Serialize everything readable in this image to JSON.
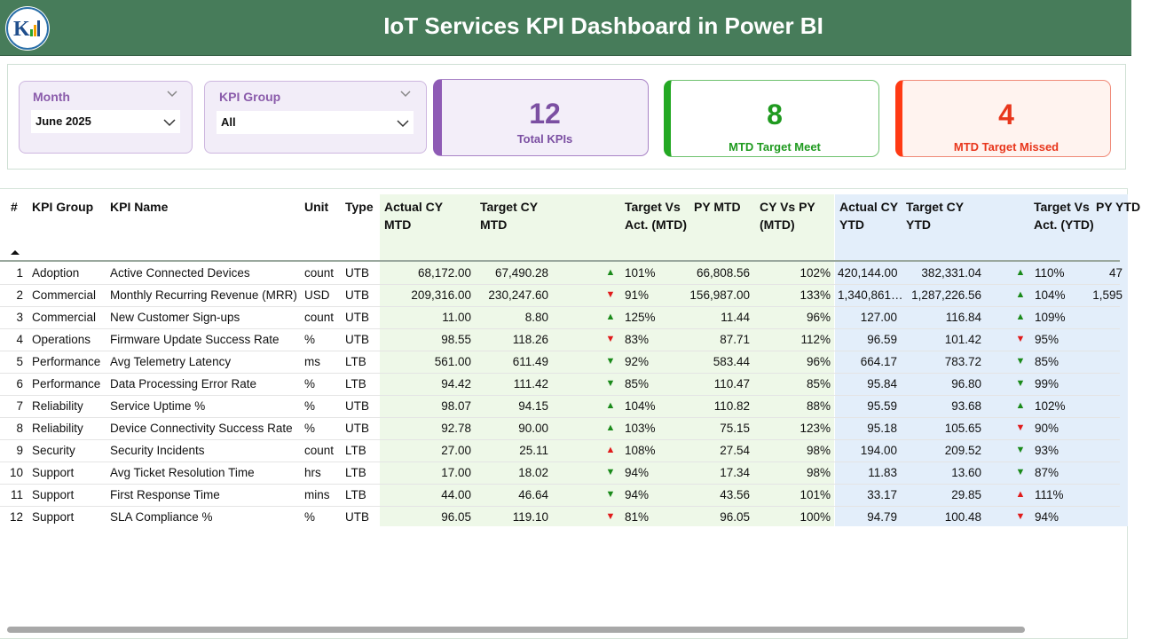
{
  "header": {
    "title": "IoT Services KPI Dashboard in Power BI"
  },
  "filters": [
    {
      "label": "Month",
      "value": "June 2025"
    },
    {
      "label": "KPI Group",
      "value": "All"
    }
  ],
  "cards": [
    {
      "value": 12,
      "label": "Total KPIs",
      "color": "#7b4fa2"
    },
    {
      "value": 8,
      "label": "MTD Target Meet",
      "color": "#1f9a1f"
    },
    {
      "value": 4,
      "label": "MTD Target Missed",
      "color": "#e8361c"
    }
  ],
  "table": {
    "columns": [
      "#",
      "KPI Group",
      "KPI Name",
      "Unit",
      "Type",
      "Actual CY MTD",
      "Target CY MTD",
      "Target Vs Act. (MTD)",
      "PY MTD",
      "CY Vs PY (MTD)",
      "Actual CY YTD",
      "Target CY YTD",
      "Target Vs Act. (YTD)",
      "PY YTD"
    ],
    "rows": [
      [
        1,
        "Adoption",
        "Active Connected Devices",
        "count",
        "UTB",
        "68,172.00",
        "67,490.28",
        {
          "symbol": "▲",
          "color": "#1a8a1a"
        },
        "101%",
        "66,808.56",
        "102%",
        "420,144.00",
        "382,331.04",
        {
          "symbol": "▲",
          "color": "#1a8a1a"
        },
        "110%",
        "47"
      ],
      [
        2,
        "Commercial",
        "Monthly Recurring Revenue (MRR)",
        "USD",
        "UTB",
        "209,316.00",
        "230,247.60",
        {
          "symbol": "▼",
          "color": "#e01b1b"
        },
        "91%",
        "156,987.00",
        "133%",
        "1,340,861…",
        "1,287,226.56",
        {
          "symbol": "▲",
          "color": "#1a8a1a"
        },
        "104%",
        "1,595"
      ],
      [
        3,
        "Commercial",
        "New Customer Sign-ups",
        "count",
        "UTB",
        "11.00",
        "8.80",
        {
          "symbol": "▲",
          "color": "#1a8a1a"
        },
        "125%",
        "11.44",
        "96%",
        "127.00",
        "116.84",
        {
          "symbol": "▲",
          "color": "#1a8a1a"
        },
        "109%",
        null
      ],
      [
        4,
        "Operations",
        "Firmware Update Success Rate",
        "%",
        "UTB",
        "98.55",
        "118.26",
        {
          "symbol": "▼",
          "color": "#e01b1b"
        },
        "83%",
        "87.71",
        "112%",
        "96.59",
        "101.42",
        {
          "symbol": "▼",
          "color": "#e01b1b"
        },
        "95%",
        null
      ],
      [
        5,
        "Performance",
        "Avg Telemetry Latency",
        "ms",
        "LTB",
        "561.00",
        "611.49",
        {
          "symbol": "▼",
          "color": "#1a8a1a"
        },
        "92%",
        "583.44",
        "96%",
        "664.17",
        "783.72",
        {
          "symbol": "▼",
          "color": "#1a8a1a"
        },
        "85%",
        null
      ],
      [
        6,
        "Performance",
        "Data Processing Error Rate",
        "%",
        "LTB",
        "94.42",
        "111.42",
        {
          "symbol": "▼",
          "color": "#1a8a1a"
        },
        "85%",
        "110.47",
        "85%",
        "95.84",
        "96.80",
        {
          "symbol": "▼",
          "color": "#1a8a1a"
        },
        "99%",
        null
      ],
      [
        7,
        "Reliability",
        "Service Uptime %",
        "%",
        "UTB",
        "98.07",
        "94.15",
        {
          "symbol": "▲",
          "color": "#1a8a1a"
        },
        "104%",
        "110.82",
        "88%",
        "95.59",
        "93.68",
        {
          "symbol": "▲",
          "color": "#1a8a1a"
        },
        "102%",
        null
      ],
      [
        8,
        "Reliability",
        "Device Connectivity Success Rate",
        "%",
        "UTB",
        "92.78",
        "90.00",
        {
          "symbol": "▲",
          "color": "#1a8a1a"
        },
        "103%",
        "75.15",
        "123%",
        "95.18",
        "105.65",
        {
          "symbol": "▼",
          "color": "#e01b1b"
        },
        "90%",
        null
      ],
      [
        9,
        "Security",
        "Security Incidents",
        "count",
        "LTB",
        "27.00",
        "25.11",
        {
          "symbol": "▲",
          "color": "#e01b1b"
        },
        "108%",
        "27.54",
        "98%",
        "194.00",
        "209.52",
        {
          "symbol": "▼",
          "color": "#1a8a1a"
        },
        "93%",
        null
      ],
      [
        10,
        "Support",
        "Avg Ticket Resolution Time",
        "hrs",
        "LTB",
        "17.00",
        "18.02",
        {
          "symbol": "▼",
          "color": "#1a8a1a"
        },
        "94%",
        "17.34",
        "98%",
        "11.83",
        "13.60",
        {
          "symbol": "▼",
          "color": "#1a8a1a"
        },
        "87%",
        null
      ],
      [
        11,
        "Support",
        "First Response Time",
        "mins",
        "LTB",
        "44.00",
        "46.64",
        {
          "symbol": "▼",
          "color": "#1a8a1a"
        },
        "94%",
        "43.56",
        "101%",
        "33.17",
        "29.85",
        {
          "symbol": "▲",
          "color": "#e01b1b"
        },
        "111%",
        null
      ],
      [
        12,
        "Support",
        "SLA Compliance %",
        "%",
        "UTB",
        "96.05",
        "119.10",
        {
          "symbol": "▼",
          "color": "#e01b1b"
        },
        "81%",
        "96.05",
        "100%",
        "94.79",
        "100.48",
        {
          "symbol": "▼",
          "color": "#e01b1b"
        },
        "94%",
        null
      ]
    ]
  }
}
